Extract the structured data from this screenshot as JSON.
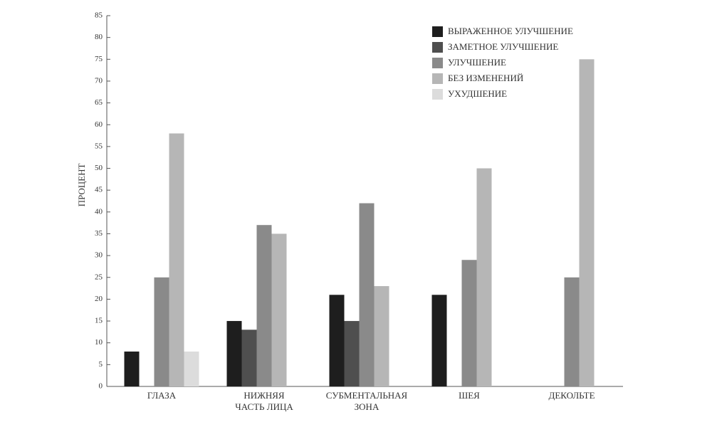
{
  "chart_data": {
    "type": "bar",
    "y_label": "ПРОЦЕНТ",
    "categories": [
      "ГЛАЗА",
      "НИЖНЯЯ\nЧАСТЬ ЛИЦА",
      "СУБМЕНТАЛЬНАЯ\nЗОНА",
      "ШЕЯ",
      "ДЕКОЛЬТЕ"
    ],
    "series": [
      {
        "name": "ВЫРАЖЕННОЕ УЛУЧШЕНИЕ",
        "color": "#1e1e1e",
        "values": [
          8,
          15,
          21,
          21,
          0
        ]
      },
      {
        "name": "ЗАМЕТНОЕ УЛУЧШЕНИЕ",
        "color": "#4f4f4f",
        "values": [
          0,
          13,
          15,
          0,
          0
        ]
      },
      {
        "name": "УЛУЧШЕНИЕ",
        "color": "#8a8a8a",
        "values": [
          25,
          37,
          42,
          29,
          25
        ]
      },
      {
        "name": "БЕЗ ИЗМЕНЕНИЙ",
        "color": "#b6b6b6",
        "values": [
          58,
          35,
          23,
          50,
          75
        ]
      },
      {
        "name": "УХУДШЕНИЕ",
        "color": "#dcdcdc",
        "values": [
          8,
          0,
          0,
          0,
          0
        ]
      }
    ],
    "ylim": [
      0,
      85
    ],
    "yticks": [
      0,
      5,
      10,
      15,
      20,
      25,
      30,
      35,
      40,
      45,
      50,
      55,
      60,
      65,
      70,
      75,
      80,
      85
    ],
    "grid": false,
    "legend": "top-right"
  }
}
